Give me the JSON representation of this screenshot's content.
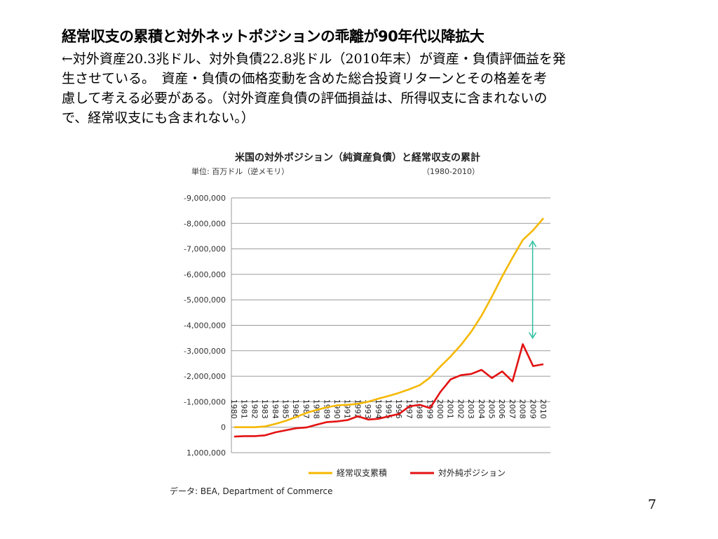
{
  "slide": {
    "heading": "経常収支の累積と対外ネットポジションの乖離が90年代以降拡大",
    "body_lines": [
      "←対外資産20.3兆ドル、対外負債22.8兆ドル（2010年末）が資産・負債評価益を発",
      "生させている。　資産・負債の価格変動を含めた総合投資リターンとその格差を考",
      "慮して考える必要がある。（対外資産負債の評価損益は、所得収支に含まれないの",
      "で、経常収支にも含まれない。）"
    ],
    "page_number": "7"
  },
  "chart_data": {
    "type": "line",
    "title": "米国の対外ポジション（純資産負債）と経常収支の累計",
    "subtitle_unit": "単位: 百万ドル（逆メモリ）",
    "subtitle_period": "（1980-2010）",
    "source": "データ: BEA, Department of Commerce",
    "x": [
      "1980",
      "1981",
      "1982",
      "1983",
      "1984",
      "1985",
      "1986",
      "1987",
      "1988",
      "1989",
      "1990",
      "1991",
      "1992",
      "1993",
      "1994",
      "1995",
      "1996",
      "1997",
      "1998",
      "1999",
      "2000",
      "2001",
      "2002",
      "2003",
      "2004",
      "2005",
      "2006",
      "2007",
      "2008",
      "2009",
      "2010"
    ],
    "yticks": [
      "-9,000,000",
      "-8,000,000",
      "-7,000,000",
      "-6,000,000",
      "-5,000,000",
      "-4,000,000",
      "-3,000,000",
      "-2,000,000",
      "-1,000,000",
      "0",
      "1,000,000"
    ],
    "ylim": [
      -9000000,
      1000000
    ],
    "y_inverted": true,
    "grid": true,
    "legend_position": "bottom",
    "series": [
      {
        "name": "経常収支累積",
        "color": "#F5B800",
        "values": [
          0,
          0,
          0,
          -30000,
          -130000,
          -250000,
          -400000,
          -560000,
          -680000,
          -780000,
          -860000,
          -880000,
          -920000,
          -1000000,
          -1120000,
          -1230000,
          -1350000,
          -1490000,
          -1650000,
          -1950000,
          -2380000,
          -2780000,
          -3230000,
          -3750000,
          -4380000,
          -5120000,
          -5920000,
          -6650000,
          -7350000,
          -7730000,
          -8200000
        ]
      },
      {
        "name": "対外純ポジション",
        "color": "#E31212",
        "values": [
          370000,
          350000,
          350000,
          320000,
          200000,
          120000,
          40000,
          10000,
          -100000,
          -200000,
          -230000,
          -280000,
          -430000,
          -300000,
          -330000,
          -430000,
          -520000,
          -820000,
          -880000,
          -750000,
          -1380000,
          -1880000,
          -2040000,
          -2090000,
          -2250000,
          -1930000,
          -2190000,
          -1800000,
          -3260000,
          -2400000,
          -2470000
        ]
      }
    ],
    "annotation": {
      "type": "double-arrow",
      "color": "#2DBFA0",
      "from_y": -7300000,
      "to_y": -3500000,
      "x_year": "2008"
    }
  }
}
